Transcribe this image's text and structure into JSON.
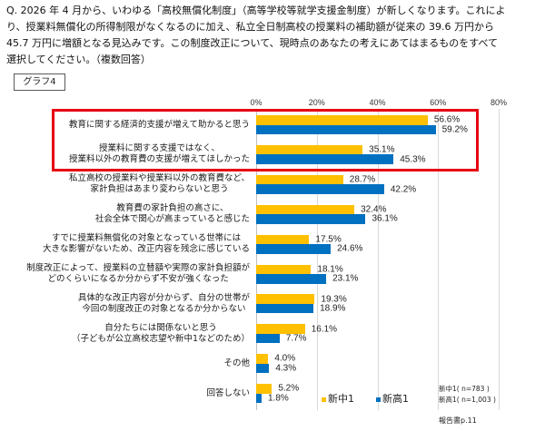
{
  "question": {
    "lines": [
      "Q. 2026 年 4 月から、いわゆる「高校無償化制度」（高等学校等就学支援金制度）が新しくなります。これによ",
      "り、授業料無償化の所得制限がなくなるのに加え、私立全日制高校の授業料の補助額が従来の 39.6 万円から",
      "45.7 万円に増額となる見込みです。この制度改正について、現時点のあなたの考えにあてはまるものをすべて",
      "選択してください。（複数回答）"
    ]
  },
  "graph_label": "グラフ4",
  "chart_data": {
    "type": "bar",
    "orientation": "horizontal",
    "title": "",
    "xlabel": "",
    "ylabel": "",
    "categories": [
      "教育に関する経済的支援が増えて助かると思う",
      "授業料に関する支援ではなく、\n授業料以外の教育費の支援が増えてほしかった",
      "私立高校の授業料や授業料以外の教育費など、\n家計負担はあまり変わらないと思う",
      "教育費の家計負担の高さに、\n社会全体で関心が高まっていると感じた",
      "すでに授業料無償化の対象となっている世帯には\n大きな影響がないため、改正内容を残念に感じている",
      "制度改正によって、授業料の立替額や実際の家計負担額が\nどのくらいになるか分からず不安が強くなった",
      "具体的な改正内容が分からず、自分の世帯が\n今回の制度改正の対象となるか分からない",
      "自分たちには関係ないと思う\n（子どもが公立高校志望や新中1などのため）",
      "その他",
      "回答しない"
    ],
    "series": [
      {
        "name": "新中1",
        "color": "#ffc000",
        "values": [
          56.6,
          35.1,
          28.7,
          32.4,
          17.5,
          18.1,
          19.3,
          16.1,
          4.0,
          5.2
        ]
      },
      {
        "name": "新高1",
        "color": "#0070c0",
        "values": [
          59.2,
          45.3,
          42.2,
          36.1,
          24.6,
          23.1,
          18.9,
          7.7,
          4.3,
          1.8
        ]
      }
    ],
    "xlim": [
      0,
      80
    ],
    "tick_values": [
      0,
      20,
      40,
      60,
      80
    ],
    "xticks": [
      "0%",
      "20%",
      "40%",
      "60%",
      "80%"
    ],
    "value_suffix": "%",
    "grid": true,
    "legend": {
      "position": "bottom-right"
    },
    "highlight": {
      "categories": [
        0,
        1
      ],
      "color": "#e60012"
    }
  },
  "notes": [
    "新中1( n=783 )",
    "新高1( n=1,003 )"
  ],
  "source": "報告書p.11"
}
